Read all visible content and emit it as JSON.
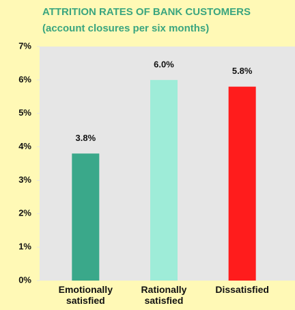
{
  "chart_data": {
    "type": "bar",
    "title": "ATTRITION RATES OF BANK CUSTOMERS",
    "subtitle": "(account closures per six months)",
    "categories": [
      "Emotionally satisfied",
      "Rationally satisfied",
      "Dissatisfied"
    ],
    "series": [
      {
        "values": [
          3.8,
          6.0,
          5.8
        ],
        "value_labels": [
          "3.8%",
          "6.0%",
          "5.8%"
        ],
        "colors": [
          "#3aa88a",
          "#9eecd8",
          "#ff1c1c"
        ]
      }
    ],
    "ylim": [
      0,
      7
    ],
    "yticks": [
      {
        "value": 0,
        "label": "0%"
      },
      {
        "value": 1,
        "label": "1%"
      },
      {
        "value": 2,
        "label": "2%"
      },
      {
        "value": 3,
        "label": "3%"
      },
      {
        "value": 4,
        "label": "4%"
      },
      {
        "value": 5,
        "label": "5%"
      },
      {
        "value": 6,
        "label": "6%"
      },
      {
        "value": 7,
        "label": "7%"
      }
    ],
    "grid": false
  }
}
